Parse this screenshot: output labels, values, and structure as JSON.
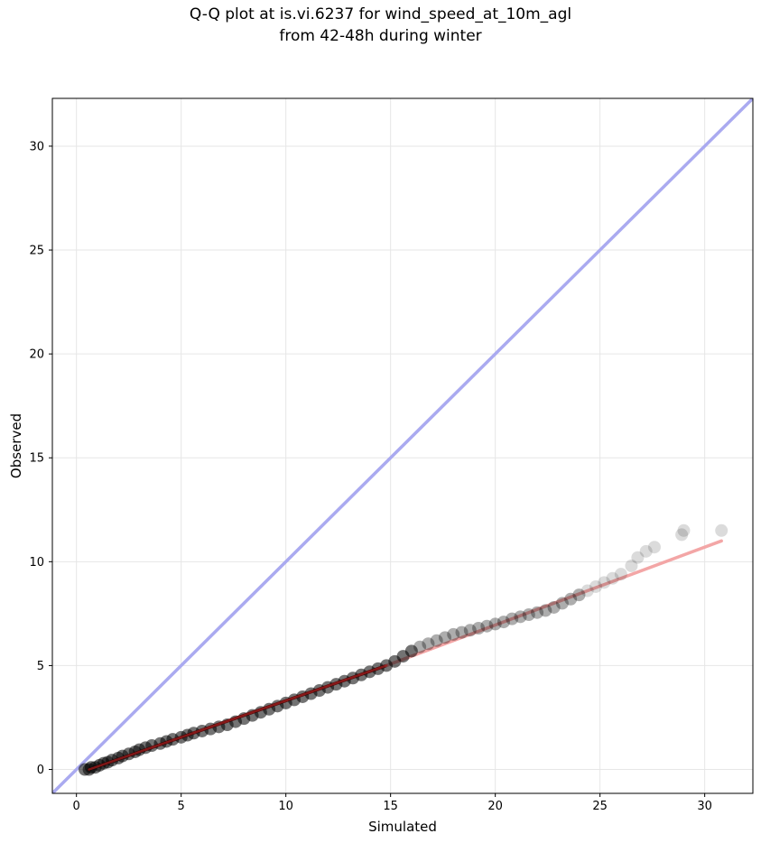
{
  "chart_data": {
    "type": "scatter",
    "title_lines": [
      "Q-Q plot at is.vi.6237 for wind_speed_at_10m_agl",
      "from 42-48h during winter"
    ],
    "xlabel": "Simulated",
    "ylabel": "Observed",
    "xlim": [
      -1.15,
      32.3
    ],
    "ylim": [
      -1.15,
      32.3
    ],
    "xticks": [
      0,
      5,
      10,
      15,
      20,
      25,
      30
    ],
    "yticks": [
      0,
      5,
      10,
      15,
      20,
      25,
      30
    ],
    "grid": true,
    "legend": "none",
    "colors": {
      "points": "#000000",
      "identity_line": "#aaaaf0",
      "fit_line_lower": "#9a1c1c",
      "fit_line_upper": "#f3a6a6",
      "grid": "#e6e6e6"
    },
    "series": [
      {
        "kind": "quantiles",
        "points": [
          [
            0.4,
            0.0
          ],
          [
            0.6,
            0.0
          ],
          [
            0.7,
            0.1
          ],
          [
            0.9,
            0.1
          ],
          [
            1.1,
            0.2
          ],
          [
            1.3,
            0.3
          ],
          [
            1.5,
            0.35
          ],
          [
            1.7,
            0.45
          ],
          [
            2.0,
            0.55
          ],
          [
            2.2,
            0.65
          ],
          [
            2.5,
            0.75
          ],
          [
            2.8,
            0.85
          ],
          [
            3.0,
            0.95
          ],
          [
            3.3,
            1.05
          ],
          [
            3.6,
            1.15
          ],
          [
            4.0,
            1.25
          ],
          [
            4.3,
            1.35
          ],
          [
            4.6,
            1.45
          ],
          [
            5.0,
            1.55
          ],
          [
            5.3,
            1.65
          ],
          [
            5.6,
            1.75
          ],
          [
            6.0,
            1.85
          ],
          [
            6.4,
            1.95
          ],
          [
            6.8,
            2.05
          ],
          [
            7.2,
            2.15
          ],
          [
            7.6,
            2.3
          ],
          [
            8.0,
            2.45
          ],
          [
            8.4,
            2.6
          ],
          [
            8.8,
            2.75
          ],
          [
            9.2,
            2.9
          ],
          [
            9.6,
            3.05
          ],
          [
            10.0,
            3.2
          ],
          [
            10.4,
            3.35
          ],
          [
            10.8,
            3.5
          ],
          [
            11.2,
            3.65
          ],
          [
            11.6,
            3.8
          ],
          [
            12.0,
            3.95
          ],
          [
            12.4,
            4.1
          ],
          [
            12.8,
            4.25
          ],
          [
            13.2,
            4.4
          ],
          [
            13.6,
            4.55
          ],
          [
            14.0,
            4.7
          ],
          [
            14.4,
            4.85
          ],
          [
            14.8,
            5.0
          ],
          [
            15.2,
            5.2
          ],
          [
            15.6,
            5.45
          ],
          [
            16.0,
            5.7
          ],
          [
            16.4,
            5.9
          ],
          [
            16.8,
            6.05
          ],
          [
            17.2,
            6.2
          ],
          [
            17.6,
            6.35
          ],
          [
            18.0,
            6.5
          ],
          [
            18.4,
            6.6
          ],
          [
            18.8,
            6.7
          ],
          [
            19.2,
            6.8
          ],
          [
            19.6,
            6.9
          ],
          [
            20.0,
            7.0
          ],
          [
            20.4,
            7.1
          ],
          [
            20.8,
            7.25
          ],
          [
            21.2,
            7.35
          ],
          [
            21.6,
            7.45
          ],
          [
            22.0,
            7.55
          ],
          [
            22.4,
            7.65
          ],
          [
            22.8,
            7.8
          ],
          [
            23.2,
            8.0
          ],
          [
            23.6,
            8.2
          ],
          [
            24.0,
            8.4
          ],
          [
            24.4,
            8.6
          ],
          [
            24.8,
            8.8
          ],
          [
            25.2,
            9.0
          ],
          [
            25.6,
            9.2
          ],
          [
            26.0,
            9.4
          ],
          [
            26.5,
            9.8
          ],
          [
            26.8,
            10.2
          ],
          [
            27.2,
            10.5
          ],
          [
            27.6,
            10.7
          ],
          [
            28.9,
            11.3
          ],
          [
            29.0,
            11.5
          ],
          [
            30.8,
            11.5
          ]
        ]
      },
      {
        "kind": "identity_line",
        "points": [
          [
            -1.15,
            -1.15
          ],
          [
            32.3,
            32.3
          ]
        ]
      },
      {
        "kind": "fit_line",
        "points": [
          [
            0.6,
            0.0
          ],
          [
            14.8,
            5.0
          ],
          [
            30.8,
            11.0
          ]
        ]
      }
    ]
  }
}
